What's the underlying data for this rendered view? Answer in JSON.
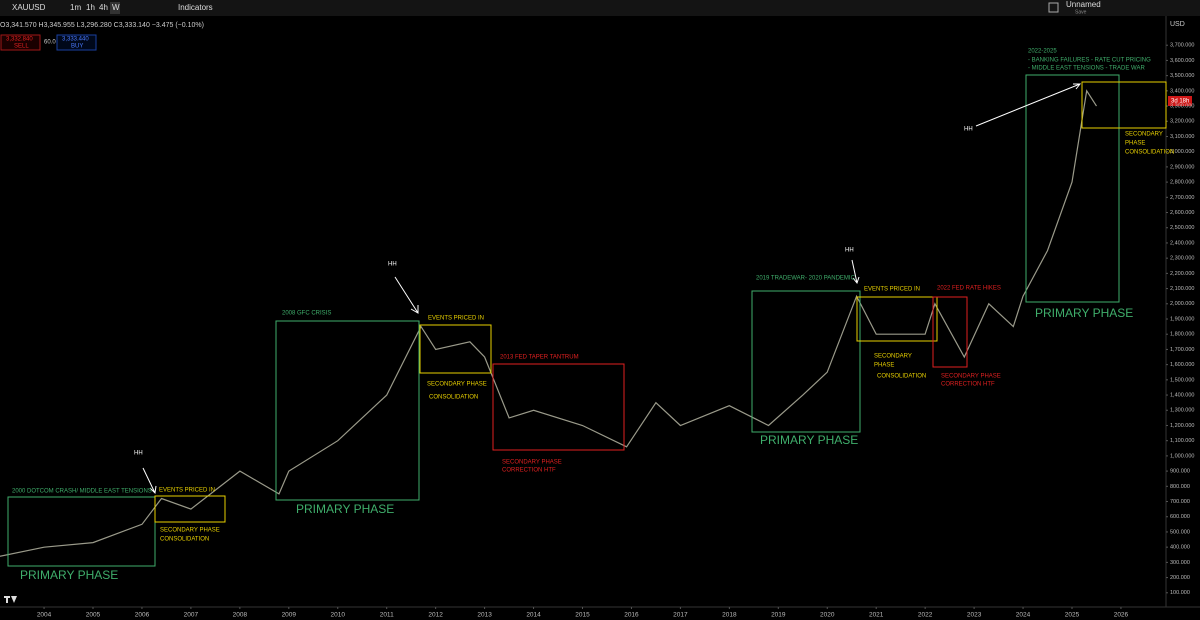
{
  "toolbar": {
    "symbol": "XAUUSD",
    "intervals": [
      "1m",
      "1h",
      "4h",
      "W"
    ],
    "indicators": "Indicators",
    "layout_name": "Unnamed",
    "save": "Save"
  },
  "legend": {
    "ohlc": "O3,341.570 H3,345.955 L3,296.280 C3,333.140 −3.475 (−0.10%)",
    "sell_price": "3,332.840",
    "sell": "SELL",
    "spread": "60.0",
    "buy_price": "3,333.440",
    "buy": "BUY"
  },
  "price_axis": {
    "currency": "USD",
    "countdown": "3d 18h"
  },
  "chart_data": {
    "type": "line",
    "color": "#9a9a8a",
    "x": [
      2003.1,
      2004,
      2005,
      2006,
      2006.4,
      2007,
      2008,
      2008.8,
      2009,
      2010,
      2011,
      2011.7,
      2012,
      2012.7,
      2013,
      2013.5,
      2014,
      2015,
      2015.9,
      2016.5,
      2017,
      2018,
      2018.8,
      2019.5,
      2020,
      2020.6,
      2021,
      2022,
      2022.2,
      2022.8,
      2023.3,
      2023.8,
      2024,
      2024.5,
      2025,
      2025.3,
      2025.5
    ],
    "values": [
      340,
      400,
      430,
      550,
      720,
      650,
      900,
      750,
      900,
      1100,
      1400,
      1850,
      1700,
      1750,
      1650,
      1250,
      1300,
      1200,
      1060,
      1350,
      1200,
      1330,
      1200,
      1400,
      1550,
      2050,
      1800,
      1800,
      2000,
      1650,
      2000,
      1850,
      2050,
      2350,
      2800,
      3400,
      3300
    ],
    "xlim": [
      2003.1,
      2026.9
    ],
    "xticks": [
      2004,
      2005,
      2006,
      2007,
      2008,
      2009,
      2010,
      2011,
      2012,
      2013,
      2014,
      2015,
      2016,
      2017,
      2018,
      2019,
      2020,
      2021,
      2022,
      2023,
      2024,
      2025,
      2026
    ],
    "ylim": [
      0,
      3800
    ],
    "yticks": [
      {
        "value": 100,
        "label": "100.000"
      },
      {
        "value": 200,
        "label": "200.000"
      },
      {
        "value": 300,
        "label": "300.000"
      },
      {
        "value": 400,
        "label": "400.000"
      },
      {
        "value": 500,
        "label": "500.000"
      },
      {
        "value": 600,
        "label": "600.000"
      },
      {
        "value": 700,
        "label": "700.000"
      },
      {
        "value": 800,
        "label": "800.000"
      },
      {
        "value": 900,
        "label": "900.000"
      },
      {
        "value": 1000,
        "label": "1,000.000"
      },
      {
        "value": 1100,
        "label": "1,100.000"
      },
      {
        "value": 1200,
        "label": "1,200.000"
      },
      {
        "value": 1300,
        "label": "1,300.000"
      },
      {
        "value": 1400,
        "label": "1,400.000"
      },
      {
        "value": 1500,
        "label": "1,500.000"
      },
      {
        "value": 1600,
        "label": "1,600.000"
      },
      {
        "value": 1700,
        "label": "1,700.000"
      },
      {
        "value": 1800,
        "label": "1,800.000"
      },
      {
        "value": 1900,
        "label": "1,900.000"
      },
      {
        "value": 2000,
        "label": "2,000.000"
      },
      {
        "value": 2100,
        "label": "2,100.000"
      },
      {
        "value": 2200,
        "label": "2,200.000"
      },
      {
        "value": 2300,
        "label": "2,300.000"
      },
      {
        "value": 2400,
        "label": "2,400.000"
      },
      {
        "value": 2500,
        "label": "2,500.000"
      },
      {
        "value": 2600,
        "label": "2,600.000"
      },
      {
        "value": 2700,
        "label": "2,700.000"
      },
      {
        "value": 2800,
        "label": "2,800.000"
      },
      {
        "value": 2900,
        "label": "2,900.000"
      },
      {
        "value": 3000,
        "label": "3,000.000"
      },
      {
        "value": 3100,
        "label": "3,100.000"
      },
      {
        "value": 3200,
        "label": "3,200.000"
      },
      {
        "value": 3300,
        "label": "3,300.000"
      },
      {
        "value": 3400,
        "label": "3,400.000"
      },
      {
        "value": 3500,
        "label": "3,500.000"
      },
      {
        "value": 3600,
        "label": "3,600.000"
      },
      {
        "value": 3700,
        "label": "3,700.000"
      }
    ],
    "grid": false,
    "annotations": [
      "2000 DOTCOM CRASH/ MIDDLE EAST TENSIONS",
      "EVENTS PRICED IN",
      "HH",
      "SECONDARY PHASE",
      "CONSOLIDATION",
      "PRIMARY PHASE",
      "2008 GFC CRISIS",
      "HH",
      "EVENTS PRICED IN",
      "SECONDARY PHASE",
      "CONSOLIDATION",
      "PRIMARY PHASE",
      "2013 FED TAPER TANTRUM",
      "SECONDARY PHASE",
      "CORRECTION HTF",
      "2019 TRADEWAR- 2020 PANDEMIC",
      "HH",
      "EVENTS PRICED IN",
      "2022 FED RATE HIKES",
      "SECONDARY",
      "PHASE",
      "CONSOLIDATION",
      "SECONDARY PHASE",
      "CORRECTION HTF",
      "PRIMARY PHASE",
      "2022-2025",
      "- BANKING FAILURES  - RATE CUT PRICING",
      "- MIDDLE EAST TENSIONS  - TRADE WAR",
      "HH",
      "SECONDARY",
      "PHASE",
      "CONSOLIDATION",
      "PRIMARY PHASE"
    ]
  }
}
